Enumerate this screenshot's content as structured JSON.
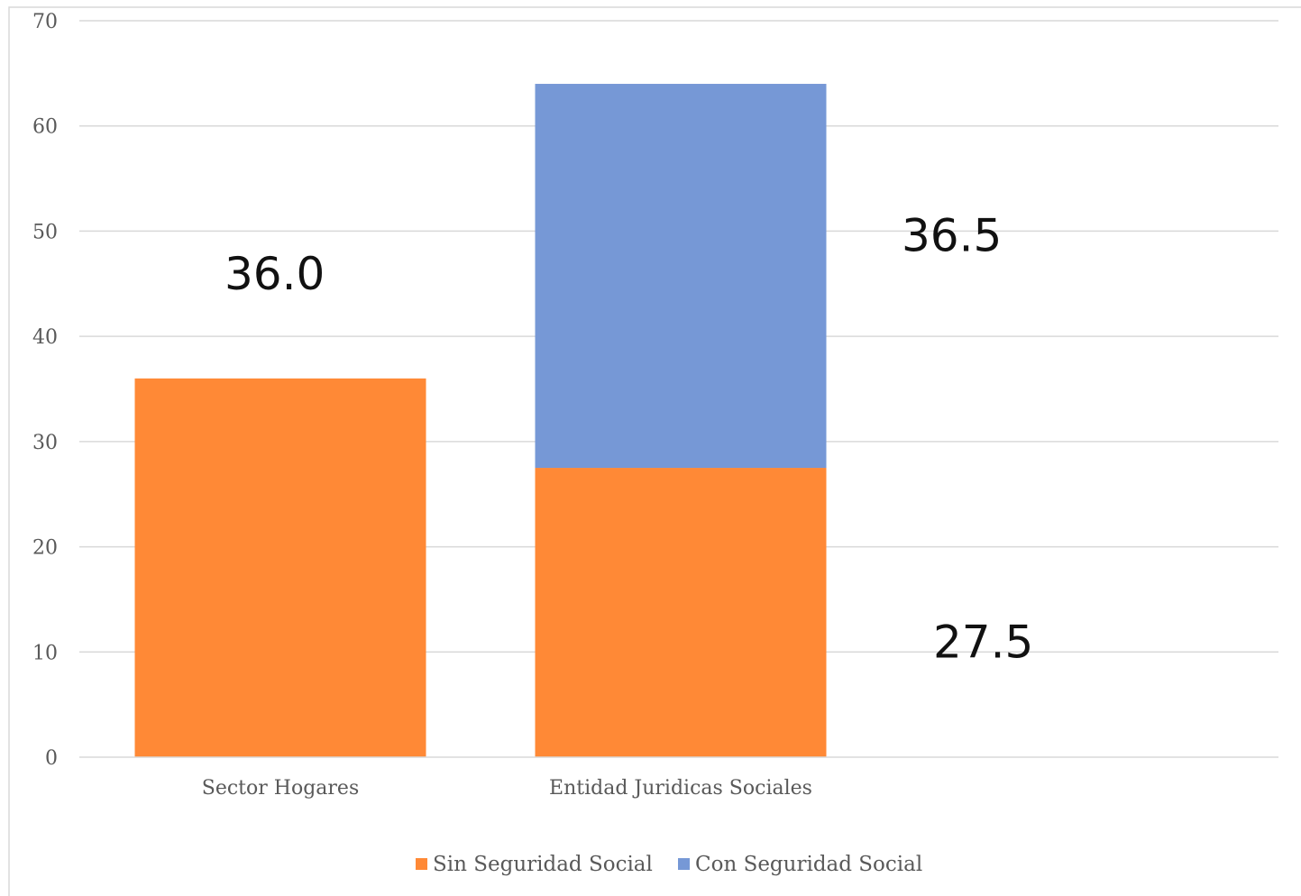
{
  "chart_data": {
    "type": "bar",
    "stacked": true,
    "categories": [
      "Sector Hogares",
      "Entidad Juridicas Sociales"
    ],
    "series": [
      {
        "name": "Sin Seguridad Social",
        "color": "#FF8936",
        "values": [
          36.0,
          27.5
        ]
      },
      {
        "name": "Con Seguridad Social",
        "color": "#7698D6",
        "values": [
          0,
          36.5
        ]
      }
    ],
    "data_labels": [
      "36.0",
      "27.5",
      "36.5"
    ],
    "ylim": [
      0,
      70
    ],
    "yticks": [
      0,
      10,
      20,
      30,
      40,
      50,
      60,
      70
    ],
    "grid": true,
    "legend": "bottom"
  }
}
